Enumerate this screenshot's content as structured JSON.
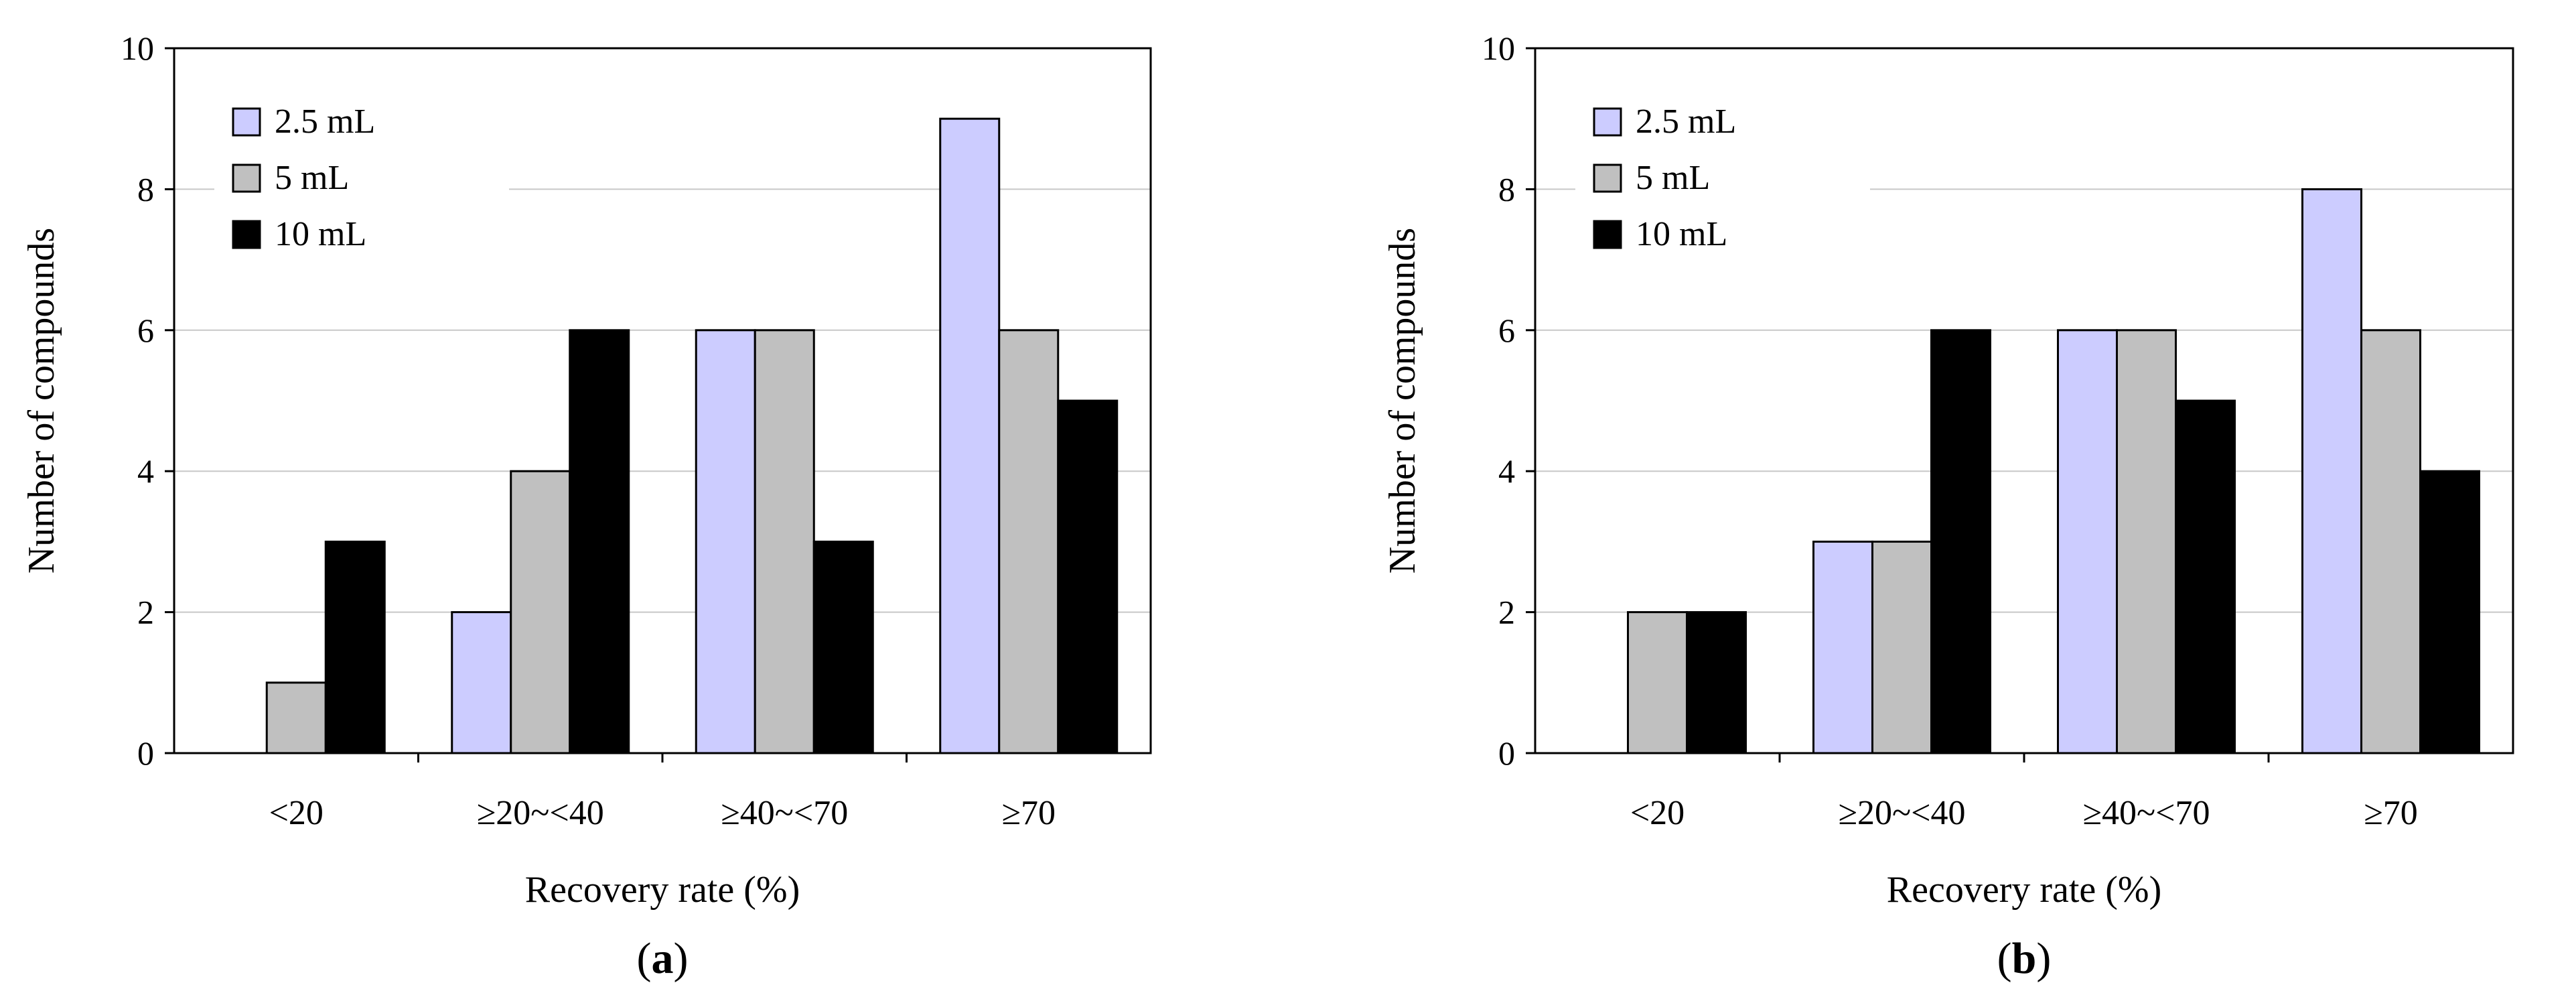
{
  "chart_data": [
    {
      "type": "bar",
      "panel_label": "a",
      "title": "",
      "xlabel": "Recovery rate (%)",
      "ylabel": "Number of compounds",
      "ylim": [
        0,
        10
      ],
      "yticks": [
        0,
        2,
        4,
        6,
        8,
        10
      ],
      "grid": true,
      "legend_position": "top-left",
      "categories": [
        "<20",
        "≥20~<40",
        "≥40~<70",
        "≥70"
      ],
      "series": [
        {
          "name": "2.5 mL",
          "color": "#ccccff",
          "values": [
            0,
            2,
            6,
            9
          ]
        },
        {
          "name": "5 mL",
          "color": "#c0c0c0",
          "values": [
            1,
            4,
            6,
            6
          ]
        },
        {
          "name": "10 mL",
          "color": "#000000",
          "values": [
            3,
            6,
            3,
            5
          ]
        }
      ]
    },
    {
      "type": "bar",
      "panel_label": "b",
      "title": "",
      "xlabel": "Recovery rate (%)",
      "ylabel": "Number of compounds",
      "ylim": [
        0,
        10
      ],
      "yticks": [
        0,
        2,
        4,
        6,
        8,
        10
      ],
      "grid": true,
      "legend_position": "top-left",
      "categories": [
        "<20",
        "≥20~<40",
        "≥40~<70",
        "≥70"
      ],
      "series": [
        {
          "name": "2.5 mL",
          "color": "#ccccff",
          "values": [
            0,
            3,
            6,
            8
          ]
        },
        {
          "name": "5 mL",
          "color": "#c0c0c0",
          "values": [
            2,
            3,
            6,
            6
          ]
        },
        {
          "name": "10 mL",
          "color": "#000000",
          "values": [
            2,
            6,
            5,
            4
          ]
        }
      ]
    }
  ]
}
